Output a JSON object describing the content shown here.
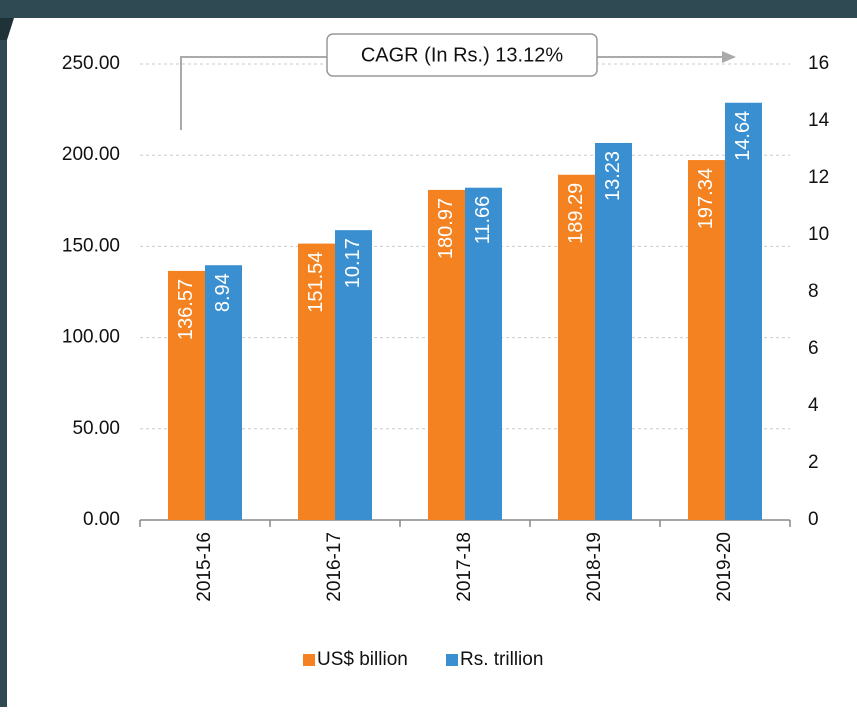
{
  "chart_data": {
    "type": "bar",
    "annotation": "CAGR (In Rs.) 13.12%",
    "categories": [
      "2015-16",
      "2016-17",
      "2017-18",
      "2018-19",
      "2019-20"
    ],
    "series": [
      {
        "name": "US$ billion",
        "color": "#f58220",
        "values": [
          136.57,
          151.54,
          180.97,
          189.29,
          197.34
        ]
      },
      {
        "name": "Rs. trillion",
        "color": "#3a8fd0",
        "axis": "y2",
        "values": [
          8.94,
          10.17,
          11.66,
          13.23,
          14.64
        ]
      }
    ],
    "ylim": [
      0,
      250
    ],
    "yticks": [
      {
        "value": 0,
        "label": "0.00"
      },
      {
        "value": 50,
        "label": "50.00"
      },
      {
        "value": 100,
        "label": "100.00"
      },
      {
        "value": 150,
        "label": "150.00"
      },
      {
        "value": 200,
        "label": "200.00"
      },
      {
        "value": 250,
        "label": "250.00"
      }
    ],
    "y2lim": [
      0,
      16
    ],
    "y2ticks": [
      0,
      2,
      4,
      6,
      8,
      10,
      12,
      14,
      16
    ],
    "grid": true,
    "legend": "bottom"
  }
}
